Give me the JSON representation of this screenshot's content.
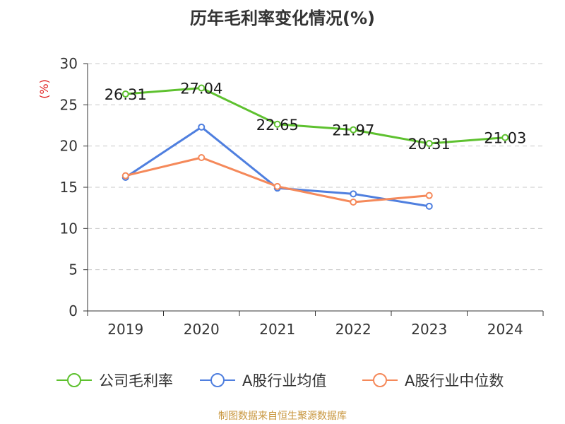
{
  "chart_data": {
    "type": "line",
    "title": "历年毛利率变化情况(%)",
    "ylabel": "(%)",
    "ylim": [
      0,
      30
    ],
    "yticks": [
      0,
      5,
      10,
      15,
      20,
      25,
      30
    ],
    "categories": [
      "2019",
      "2020",
      "2021",
      "2022",
      "2023",
      "2024"
    ],
    "grid": true,
    "legend_position": "bottom",
    "series": [
      {
        "name": "公司毛利率",
        "color": "#5ec12f",
        "values": [
          26.31,
          27.04,
          22.65,
          21.97,
          20.31,
          21.03
        ],
        "labels": [
          "26.31",
          "27.04",
          "22.65",
          "21.97",
          "20.31",
          "21.03"
        ]
      },
      {
        "name": "A股行业均值",
        "color": "#4f7fdf",
        "values": [
          16.2,
          22.3,
          14.9,
          14.2,
          12.7,
          null
        ]
      },
      {
        "name": "A股行业中位数",
        "color": "#f5895a",
        "values": [
          16.4,
          18.6,
          15.1,
          13.2,
          14.0,
          null
        ]
      }
    ]
  },
  "footer": {
    "source": "制图数据来自恒生聚源数据库"
  }
}
